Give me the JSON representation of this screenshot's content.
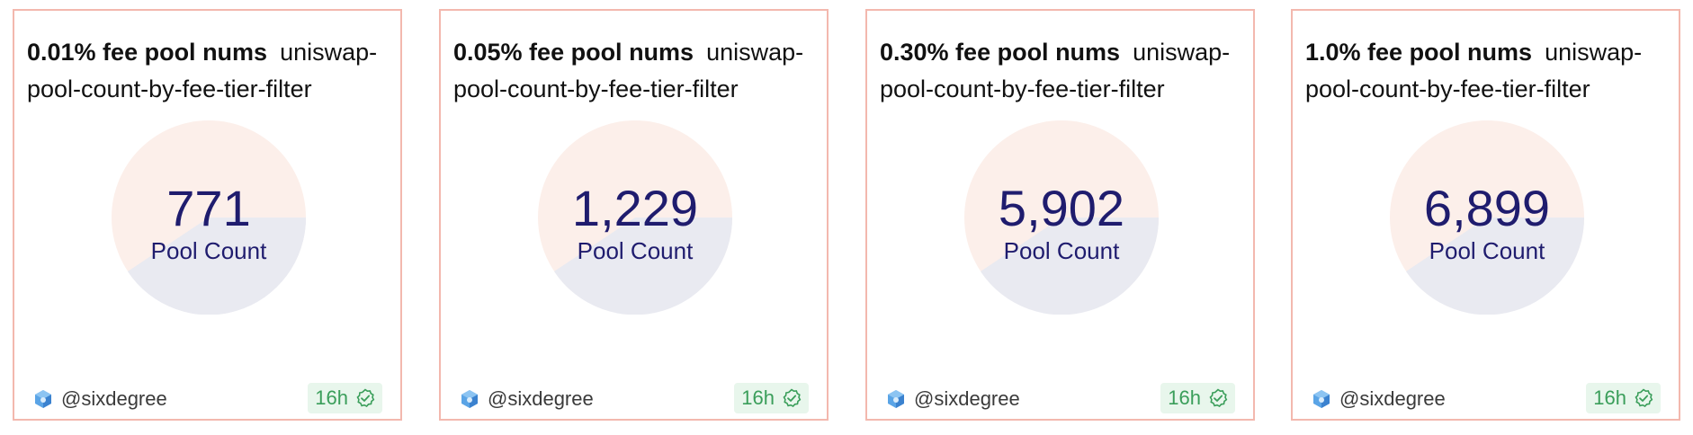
{
  "cards": [
    {
      "title": "0.01% fee pool nums",
      "slug": "uniswap-pool-count-by-fee-tier-filter",
      "value": "771",
      "value_label": "Pool Count",
      "author": "@sixdegree",
      "age": "16h"
    },
    {
      "title": "0.05% fee pool nums",
      "slug": "uniswap-pool-count-by-fee-tier-filter",
      "value": "1,229",
      "value_label": "Pool Count",
      "author": "@sixdegree",
      "age": "16h"
    },
    {
      "title": "0.30% fee pool nums",
      "slug": "uniswap-pool-count-by-fee-tier-filter",
      "value": "5,902",
      "value_label": "Pool Count",
      "author": "@sixdegree",
      "age": "16h"
    },
    {
      "title": "1.0% fee pool nums",
      "slug": "uniswap-pool-count-by-fee-tier-filter",
      "value": "6,899",
      "value_label": "Pool Count",
      "author": "@sixdegree",
      "age": "16h"
    }
  ],
  "colors": {
    "border": "#f3b8ae",
    "pie_top": "#fcefea",
    "pie_bottom": "#e9eaf1",
    "value_text": "#1f1c6e",
    "badge_bg": "#e8f6ec",
    "badge_text": "#3a9e5a"
  },
  "icons": {
    "avatar": "cube-avatar-icon",
    "badge": "check-circle-icon"
  }
}
